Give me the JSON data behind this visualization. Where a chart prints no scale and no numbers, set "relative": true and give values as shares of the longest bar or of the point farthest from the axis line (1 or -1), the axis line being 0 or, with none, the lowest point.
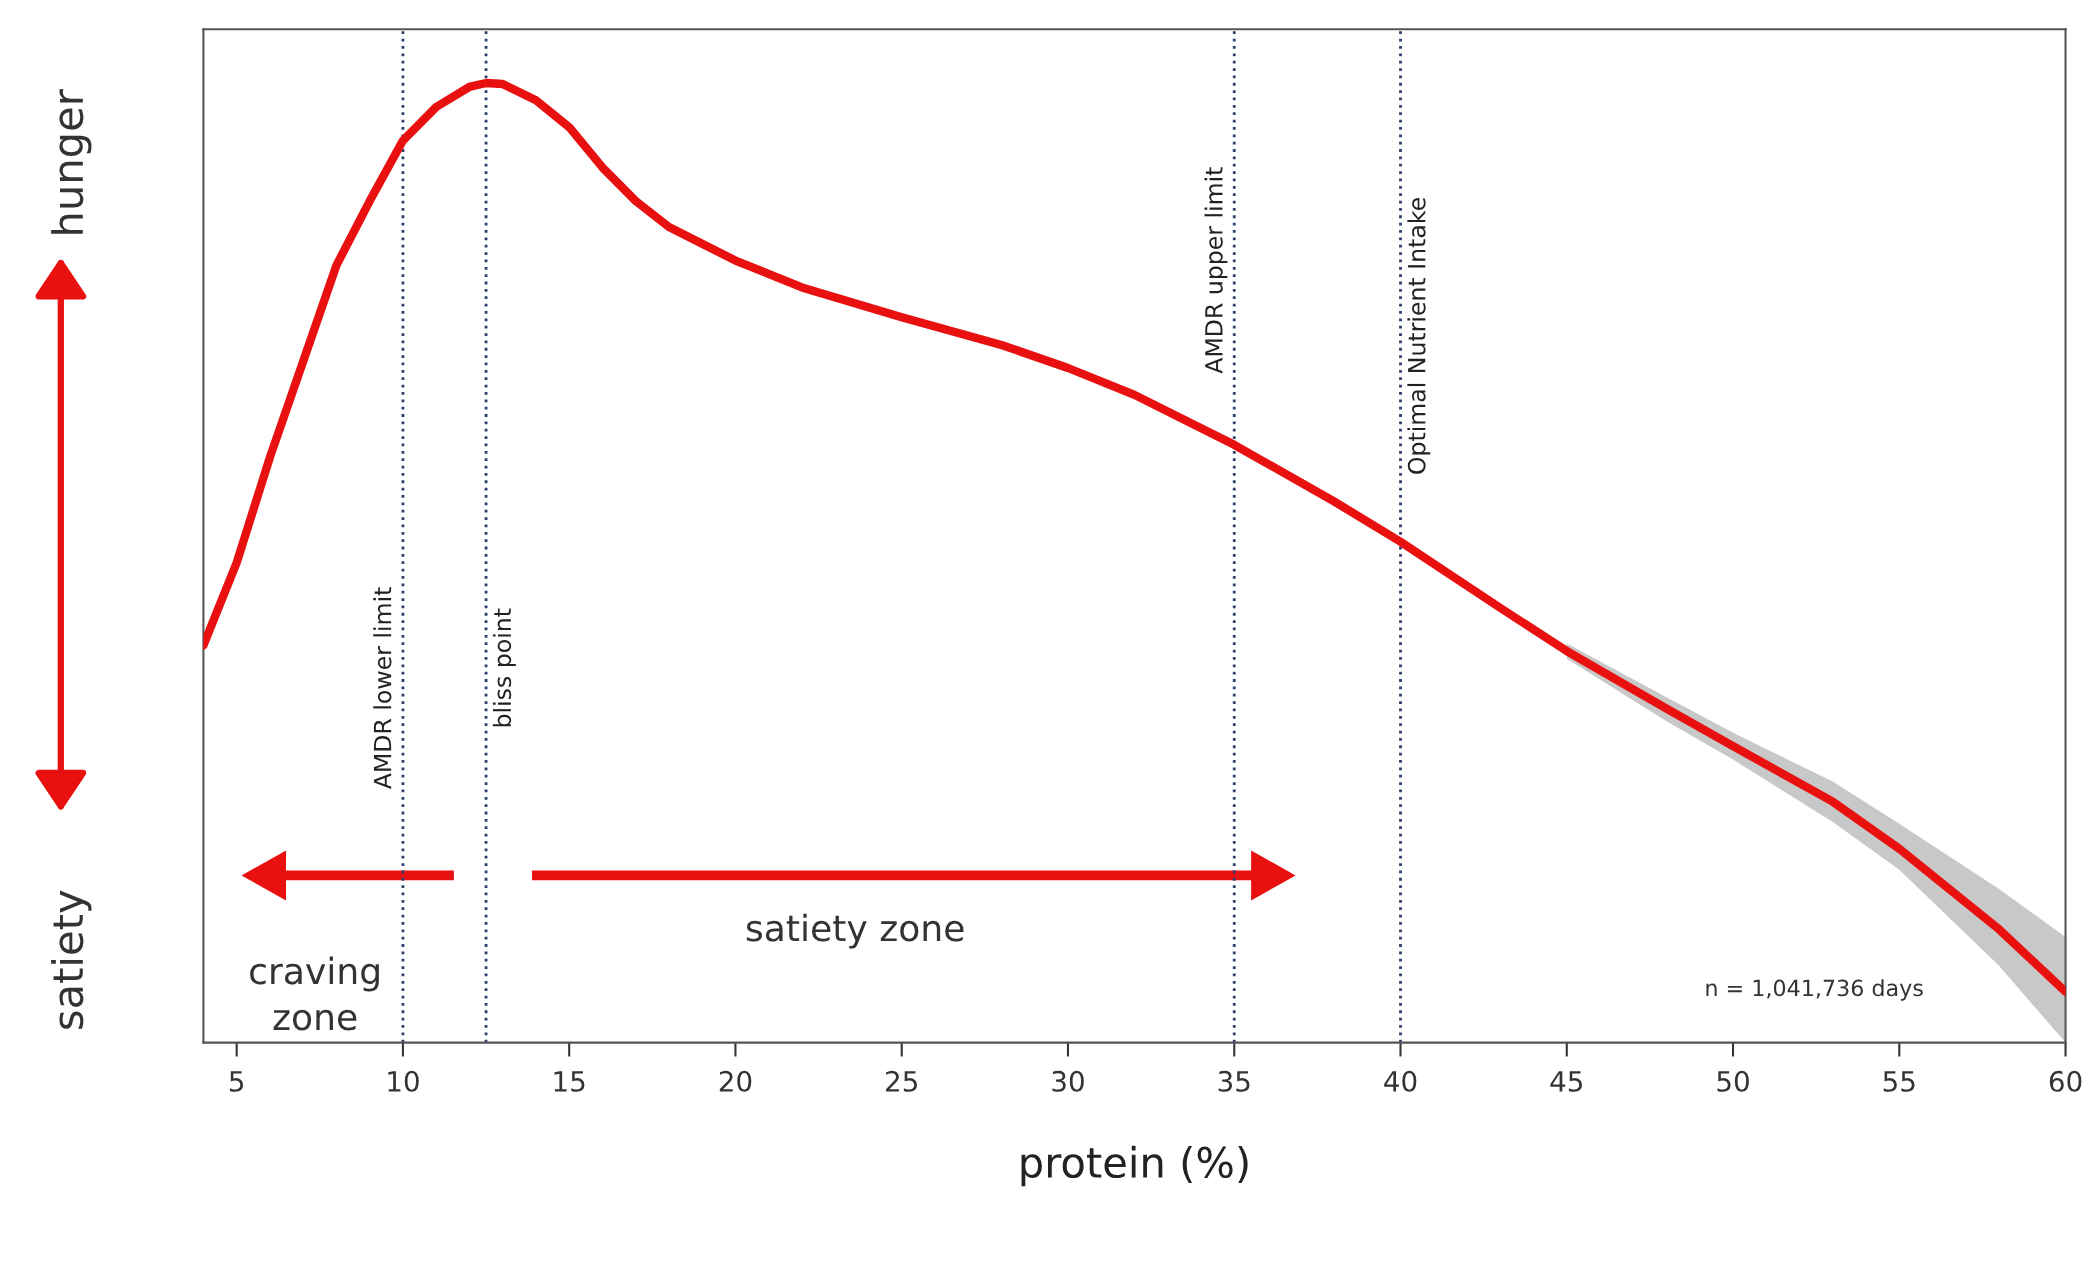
{
  "chart_data": {
    "type": "line",
    "relative": true,
    "xlabel": "protein (%)",
    "xlim": [
      4,
      60
    ],
    "xticks": [
      5,
      10,
      15,
      20,
      25,
      30,
      35,
      40,
      45,
      50,
      55,
      60
    ],
    "x": [
      4,
      5,
      6,
      7,
      8,
      9,
      10,
      11,
      12,
      12.5,
      13,
      14,
      15,
      16,
      17,
      18,
      20,
      22,
      25,
      28,
      30,
      32,
      35,
      38,
      40,
      43,
      45,
      48,
      50,
      53,
      55,
      58,
      60
    ],
    "series": [
      {
        "color": "#e8110f",
        "values": [
          0.414,
          0.5,
          0.61,
          0.71,
          0.81,
          0.877,
          0.94,
          0.975,
          0.996,
          1,
          0.999,
          0.982,
          0.954,
          0.912,
          0.877,
          0.85,
          0.815,
          0.787,
          0.756,
          0.727,
          0.703,
          0.675,
          0.623,
          0.564,
          0.522,
          0.453,
          0.408,
          0.348,
          0.309,
          0.251,
          0.202,
          0.118,
          0.053
        ],
        "lower": [
          null,
          null,
          null,
          null,
          null,
          null,
          null,
          null,
          null,
          null,
          null,
          null,
          null,
          null,
          null,
          null,
          null,
          null,
          null,
          null,
          null,
          null,
          null,
          null,
          null,
          null,
          0.4,
          0.335,
          0.295,
          0.23,
          0.18,
          0.08,
          0.0
        ],
        "upper": [
          null,
          null,
          null,
          null,
          null,
          null,
          null,
          null,
          null,
          null,
          null,
          null,
          null,
          null,
          null,
          null,
          null,
          null,
          null,
          null,
          null,
          null,
          null,
          null,
          null,
          null,
          0.416,
          0.36,
          0.323,
          0.272,
          0.228,
          0.16,
          0.11
        ]
      }
    ],
    "ref_lines": [
      {
        "axis": "x",
        "value": 10,
        "label": "AMDR lower limit",
        "color": "#2c3e6b",
        "line_style": "dotted"
      },
      {
        "axis": "x",
        "value": 12.5,
        "label": "bliss point",
        "color": "#2c3e6b",
        "line_style": "dotted"
      },
      {
        "axis": "x",
        "value": 35,
        "label": "AMDR upper limit",
        "color": "#2c3e6b",
        "line_style": "dotted"
      },
      {
        "axis": "x",
        "value": 40,
        "label": "Optimal Nutrient Intake",
        "color": "#2c3e6b",
        "line_style": "dotted"
      }
    ],
    "annotations": [
      "hunger",
      "satiety",
      "craving\nzone",
      "satiety zone",
      "n = 1,041,736 days"
    ],
    "grid": false
  }
}
